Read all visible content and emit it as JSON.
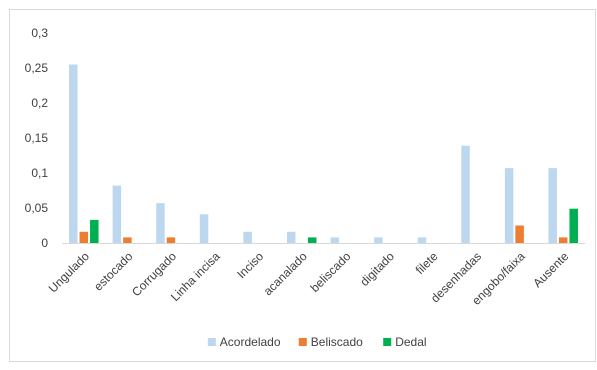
{
  "chart_data": {
    "type": "bar",
    "title": "",
    "xlabel": "",
    "ylabel": "",
    "ylim": [
      0,
      0.3
    ],
    "yticks": [
      {
        "value": 0,
        "label": "0"
      },
      {
        "value": 0.05,
        "label": "0,05"
      },
      {
        "value": 0.1,
        "label": "0,1"
      },
      {
        "value": 0.15,
        "label": "0,15"
      },
      {
        "value": 0.2,
        "label": "0,2"
      },
      {
        "value": 0.25,
        "label": "0,25"
      },
      {
        "value": 0.3,
        "label": "0,3"
      }
    ],
    "grid": false,
    "legend_position": "bottom",
    "categories": [
      "Ungulado",
      "estocado",
      "Corrugado",
      "Linha incisa",
      "Inciso",
      "acanalado",
      "beliscado",
      "digitado",
      "filete",
      "desenhadas",
      "engobo/faixa",
      "Ausente"
    ],
    "series": [
      {
        "name": "Acordelado",
        "color": "#bdd7ee",
        "values": [
          0.255,
          0.082,
          0.057,
          0.041,
          0.016,
          0.016,
          0.008,
          0.008,
          0.008,
          0.139,
          0.107,
          0.107
        ]
      },
      {
        "name": "Beliscado",
        "color": "#ed7d31",
        "values": [
          0.016,
          0.008,
          0.008,
          0,
          0,
          0,
          0,
          0,
          0,
          0,
          0.025,
          0.008
        ]
      },
      {
        "name": "Dedal",
        "color": "#00b050",
        "values": [
          0.033,
          0,
          0,
          0,
          0,
          0.008,
          0,
          0,
          0,
          0,
          0,
          0.049
        ]
      }
    ],
    "colors": {
      "axis": "#d9d9d9",
      "text": "#404040",
      "border": "#d9d9d9"
    }
  }
}
